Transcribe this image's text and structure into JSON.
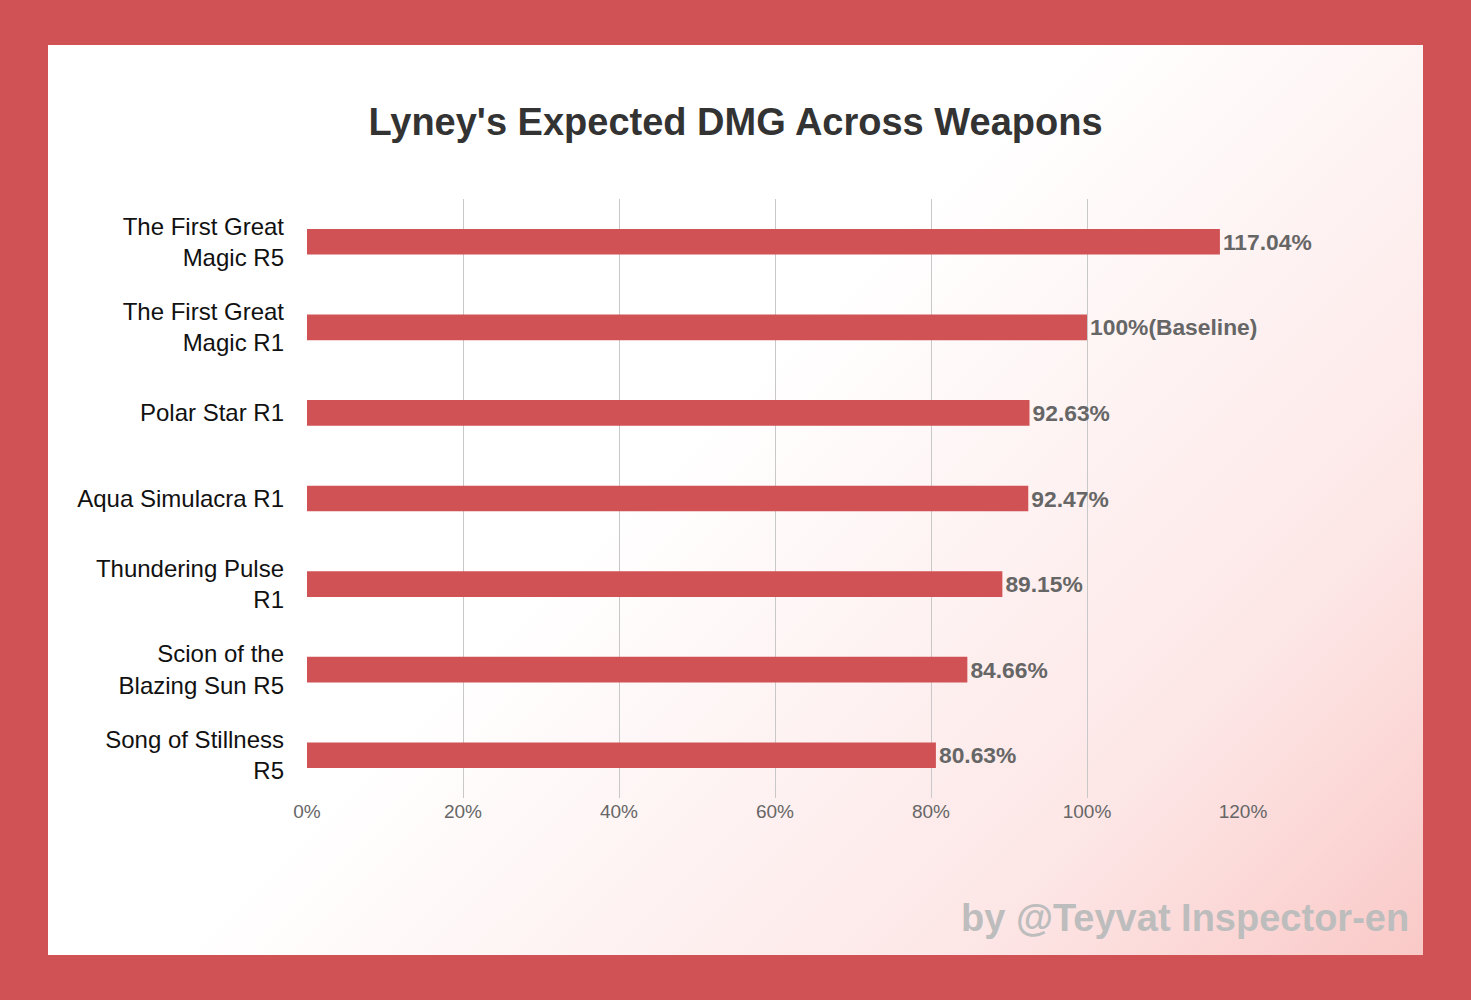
{
  "chart_data": {
    "type": "bar",
    "orientation": "horizontal",
    "title": "Lyney's Expected DMG Across Weapons",
    "categories": [
      "The First Great Magic R5",
      "The First Great Magic R1",
      "Polar Star R1",
      "Aqua Simulacra R1",
      "Thundering Pulse R1",
      "Scion of the Blazing Sun R5",
      "Song of Stillness R5"
    ],
    "values": [
      117.04,
      100,
      92.63,
      92.47,
      89.15,
      84.66,
      80.63
    ],
    "value_labels": [
      "117.04%",
      "100%(Baseline)",
      "92.63%",
      "92.47%",
      "89.15%",
      "84.66%",
      "80.63%"
    ],
    "color": "#d05255",
    "xlim": [
      0,
      120
    ],
    "xticks": [
      {
        "value": 0,
        "label": "0%"
      },
      {
        "value": 20,
        "label": "20%"
      },
      {
        "value": 40,
        "label": "40%"
      },
      {
        "value": 60,
        "label": "60%"
      },
      {
        "value": 80,
        "label": "80%"
      },
      {
        "value": 100,
        "label": "100%"
      },
      {
        "value": 120,
        "label": "120%"
      }
    ],
    "grid": true,
    "data_labels": true,
    "annotations": [
      "by @Teyvat Inspector-en"
    ]
  }
}
